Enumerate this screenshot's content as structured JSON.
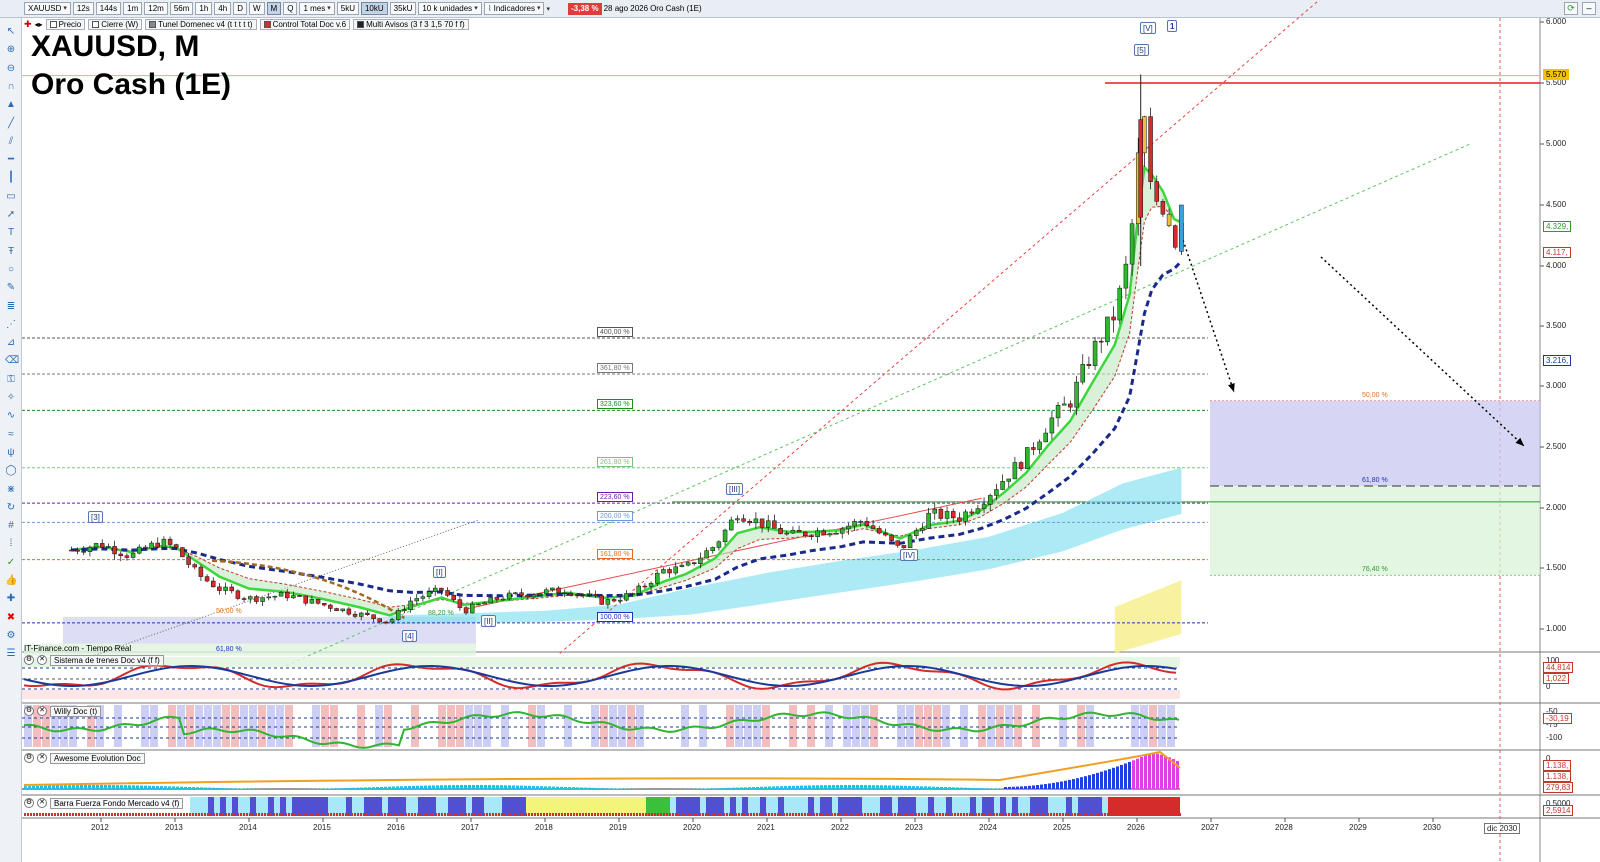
{
  "toolbar": {
    "symbol": "XAUUSD",
    "timeframes": [
      "12s",
      "144s",
      "1m",
      "12m",
      "56m",
      "1h",
      "4h",
      "D",
      "W",
      "M",
      "Q"
    ],
    "active_timeframe": "M",
    "range": "1 mes",
    "units": [
      "5kU",
      "10kU",
      "35kU"
    ],
    "active_unit": "10kU",
    "units_select": "10 k unidades",
    "indicators_label": "Indicadores",
    "change": "-3,38 %",
    "date": "28 ago 2026",
    "instrument_name": "Oro Cash (1E)"
  },
  "indicator_chips": [
    {
      "label": "Precio",
      "color": "#ffffff"
    },
    {
      "label": "Cierre (W)",
      "color": "#ffffff"
    },
    {
      "label": "Tunel Domenec v4 (t t t t t)",
      "color": "#888888"
    },
    {
      "label": "Control Total Doc v.6",
      "color": "#c0392b"
    },
    {
      "label": "Multi Avisos (3 f 3 1,5 70 f f)",
      "color": "#222222"
    }
  ],
  "chart_title": "XAUUSD, M",
  "chart_subtitle": "Oro Cash (1E)",
  "source": "IT-Finance.com - Tiempo Real",
  "chart_data": {
    "type": "line",
    "title": "XAUUSD, M",
    "subtitle": "Oro Cash (1E)",
    "x_labels": [
      "2012",
      "2013",
      "2014",
      "2015",
      "2016",
      "2017",
      "2018",
      "2019",
      "2020",
      "2021",
      "2022",
      "2023",
      "2024",
      "2025",
      "2026",
      "2027",
      "2028",
      "2029",
      "2030"
    ],
    "x_end_label": "dic 2030",
    "y_ticks": [
      "6.000",
      "5.500",
      "5.000",
      "4.500",
      "4.000",
      "3.500",
      "3.000",
      "2.500",
      "2.000",
      "1.500",
      "1.000"
    ],
    "ylim": [
      700,
      6000
    ],
    "price_tags": [
      {
        "label": "5.570",
        "color": "#f2c200"
      },
      {
        "label": "4.329,",
        "color": "#2d9a2d"
      },
      {
        "label": "4.117,",
        "color": "#c0392b"
      },
      {
        "label": "3.216,",
        "color": "#1a3b9a"
      }
    ],
    "close_series": {
      "x": [
        2011.6,
        2012.0,
        2012.4,
        2012.8,
        2013.0,
        2013.3,
        2013.6,
        2014.0,
        2014.5,
        2015.0,
        2015.5,
        2015.9,
        2016.2,
        2016.6,
        2016.9,
        2017.4,
        2017.9,
        2018.3,
        2018.8,
        2019.2,
        2019.6,
        2019.9,
        2020.3,
        2020.6,
        2020.9,
        2021.3,
        2021.6,
        2022.0,
        2022.3,
        2022.8,
        2023.2,
        2023.6,
        2023.9,
        2024.2,
        2024.5,
        2024.8,
        2025.1,
        2025.4,
        2025.7,
        2025.9,
        2026.0,
        2026.1,
        2026.2,
        2026.35,
        2026.5,
        2026.6
      ],
      "y": [
        1650,
        1700,
        1600,
        1720,
        1670,
        1450,
        1330,
        1250,
        1280,
        1200,
        1120,
        1060,
        1240,
        1320,
        1150,
        1260,
        1300,
        1320,
        1220,
        1290,
        1480,
        1500,
        1690,
        1960,
        1880,
        1770,
        1800,
        1830,
        1900,
        1650,
        1950,
        1920,
        2060,
        2240,
        2420,
        2700,
        2880,
        3290,
        3600,
        4100,
        4800,
        5200,
        4700,
        4500,
        4200,
        4329
      ]
    },
    "fib_levels": [
      {
        "label": "400,00 %",
        "value": 3400,
        "color": "#555555"
      },
      {
        "label": "361,80 %",
        "value": 3100,
        "color": "#777777"
      },
      {
        "label": "323,60 %",
        "value": 2800,
        "color": "#1e8a1e"
      },
      {
        "label": "261,80 %",
        "value": 2330,
        "color": "#7ac47a"
      },
      {
        "label": "223,60 %",
        "value": 2040,
        "color": "#6a1ea8"
      },
      {
        "label": "200,00 %",
        "value": 1880,
        "color": "#6b9ad6"
      },
      {
        "label": "161,80 %",
        "value": 1570,
        "color": "#e07020"
      },
      {
        "label": "100,00 %",
        "value": 1050,
        "color": "#2030c0"
      }
    ],
    "fib_lower_labels": [
      "50,00 %",
      "61,80 %",
      "88,20 %"
    ],
    "target_labels": [
      "50,00 %",
      "61,80 %",
      "76,40 %"
    ],
    "waves": [
      "[3]",
      "[I]",
      "[4]",
      "[II]",
      "[III]",
      "[IV]",
      "[V]",
      "[5]",
      "1"
    ]
  },
  "panes": [
    {
      "name": "Sistema de trenes Doc v4 (f f)",
      "ticks": [
        "100",
        "50",
        "0"
      ],
      "tags": [
        "44,814",
        "1,022"
      ]
    },
    {
      "name": "Willy Doc (t)",
      "ticks": [
        "-50",
        "-75",
        "-100"
      ],
      "tags": [
        "-30,19"
      ]
    },
    {
      "name": "Awesome Evolution Doc",
      "ticks": [
        "0"
      ],
      "tags": [
        "1.138,",
        "1.138,",
        "279,83"
      ]
    },
    {
      "name": "Barra Fuerza Fondo Mercado v4 (f)",
      "ticks": [
        "0,5000"
      ],
      "tags": [
        "2,5914"
      ]
    }
  ],
  "colors": {
    "accent": "#2d6bb3",
    "up": "#2fb52f",
    "down": "#d42b2b",
    "tunnel_fast": "#3dd63d",
    "tunnel_slow": "#1a2a8a"
  }
}
